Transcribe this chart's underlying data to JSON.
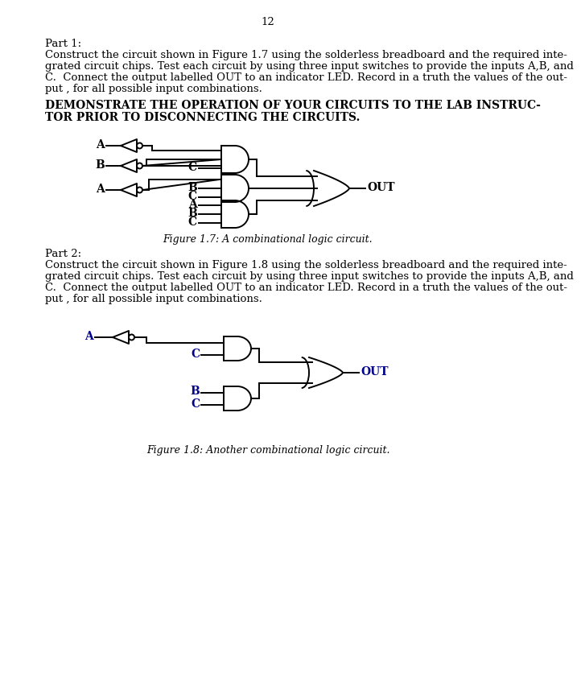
{
  "page_number": "12",
  "bg": "#ffffff",
  "tc": "#000000",
  "part1_label": "Part 1:",
  "part1_body_lines": [
    "Construct the circuit shown in Figure 1.7 using the solderless breadboard and the required inte-",
    "grated circuit chips. Test each circuit by using three input switches to provide the inputs A,B, and",
    "C.  Connect the output labelled OUT to an indicator LED. Record in a truth the values of the out-",
    "put , for all possible input combinations."
  ],
  "bold_line1": "DEMONSTRATE THE OPERATION OF YOUR CIRCUITS TO THE LAB INSTRUC-",
  "bold_line2": "TOR PRIOR TO DISCONNECTING THE CIRCUITS.",
  "fig1_caption": "Figure 1.7: A combinational logic circuit.",
  "part2_label": "Part 2:",
  "part2_body_lines": [
    "Construct the circuit shown in Figure 1.8 using the solderless breadboard and the required inte-",
    "grated circuit chips. Test each circuit by using three input switches to provide the inputs A,B, and",
    "C.  Connect the output labelled OUT to an indicator LED. Record in a truth the values of the out-",
    "put , for all possible input combinations."
  ],
  "fig2_caption": "Figure 1.8: Another combinational logic circuit.",
  "label_color_fig1": "#000000",
  "label_color_fig2": "#00008B",
  "out_color_fig2": "#00008B"
}
